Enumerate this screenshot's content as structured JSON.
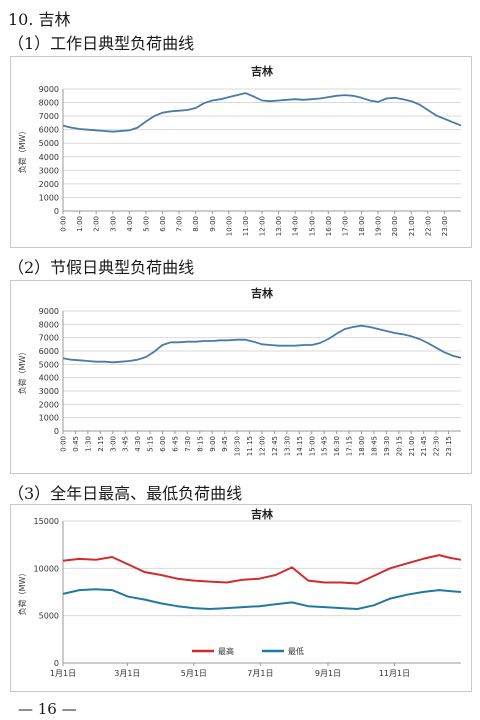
{
  "page": {
    "section_title": "10. 吉林",
    "footer": "— 16 —"
  },
  "charts": [
    {
      "heading": "（1）工作日典型负荷曲线",
      "chart_data": {
        "type": "line",
        "title": "吉林",
        "ylabel": "负荷（MW）",
        "xlabel": "",
        "ylim": [
          0,
          9000
        ],
        "yticks": [
          0,
          1000,
          2000,
          3000,
          4000,
          5000,
          6000,
          7000,
          8000,
          9000
        ],
        "x_tick_labels": [
          "0:00",
          "1:00",
          "2:00",
          "3:00",
          "4:00",
          "5:00",
          "6:00",
          "7:00",
          "8:00",
          "9:00",
          "10:00",
          "11:00",
          "12:00",
          "13:00",
          "14:00",
          "15:00",
          "16:00",
          "17:00",
          "18:00",
          "19:00",
          "20:00",
          "21:00",
          "22:00",
          "23:00"
        ],
        "x_hours": [
          0,
          0.5,
          1,
          1.5,
          2,
          2.5,
          3,
          3.5,
          4,
          4.5,
          5,
          5.5,
          6,
          6.5,
          7,
          7.5,
          8,
          8.5,
          9,
          9.5,
          10,
          10.5,
          11,
          11.5,
          12,
          12.5,
          13,
          13.5,
          14,
          14.5,
          15,
          15.5,
          16,
          16.5,
          17,
          17.5,
          18,
          18.5,
          19,
          19.5,
          20,
          20.5,
          21,
          21.5,
          22,
          22.5,
          23,
          23.5,
          24
        ],
        "series": [
          {
            "color": "#4a7aa8",
            "values": [
              6300,
              6150,
              6050,
              6000,
              5950,
              5900,
              5850,
              5900,
              5950,
              6150,
              6600,
              7000,
              7250,
              7350,
              7400,
              7450,
              7600,
              7950,
              8150,
              8250,
              8400,
              8550,
              8700,
              8450,
              8150,
              8100,
              8150,
              8200,
              8250,
              8200,
              8250,
              8300,
              8400,
              8500,
              8550,
              8500,
              8350,
              8150,
              8050,
              8300,
              8350,
              8250,
              8100,
              7850,
              7450,
              7050,
              6800,
              6550,
              6300
            ]
          }
        ]
      }
    },
    {
      "heading": "（2）节假日典型负荷曲线",
      "chart_data": {
        "type": "line",
        "title": "吉林",
        "ylabel": "负荷（MW）",
        "xlabel": "",
        "ylim": [
          0,
          9000
        ],
        "yticks": [
          0,
          1000,
          2000,
          3000,
          4000,
          5000,
          6000,
          7000,
          8000,
          9000
        ],
        "x_tick_labels": [
          "0:00",
          "0:45",
          "1:30",
          "2:15",
          "3:00",
          "3:45",
          "4:30",
          "5:15",
          "6:00",
          "6:45",
          "7:30",
          "8:15",
          "9:00",
          "9:45",
          "10:30",
          "11:15",
          "12:00",
          "12:45",
          "13:30",
          "14:15",
          "15:00",
          "15:45",
          "16:30",
          "17:15",
          "18:00",
          "18:45",
          "19:30",
          "20:15",
          "21:00",
          "21:45",
          "22:30",
          "23:15"
        ],
        "x_hours": [
          0,
          0.5,
          1,
          1.5,
          2,
          2.5,
          3,
          3.5,
          4,
          4.5,
          5,
          5.5,
          6,
          6.5,
          7,
          7.5,
          8,
          8.5,
          9,
          9.5,
          10,
          10.5,
          11,
          11.5,
          12,
          12.5,
          13,
          13.5,
          14,
          14.5,
          15,
          15.5,
          16,
          16.5,
          17,
          17.5,
          18,
          18.5,
          19,
          19.5,
          20,
          20.5,
          21,
          21.5,
          22,
          22.5,
          23,
          23.5,
          24
        ],
        "series": [
          {
            "color": "#4a7aa8",
            "values": [
              5450,
              5350,
              5300,
              5250,
              5200,
              5200,
              5150,
              5200,
              5250,
              5350,
              5550,
              5950,
              6450,
              6650,
              6650,
              6700,
              6700,
              6750,
              6750,
              6800,
              6800,
              6850,
              6850,
              6700,
              6500,
              6450,
              6400,
              6400,
              6400,
              6450,
              6450,
              6600,
              6900,
              7300,
              7650,
              7800,
              7900,
              7800,
              7650,
              7500,
              7350,
              7250,
              7100,
              6900,
              6600,
              6250,
              5900,
              5650,
              5500
            ]
          }
        ]
      }
    },
    {
      "heading": "（3）全年日最高、最低负荷曲线",
      "chart_data": {
        "type": "line",
        "title": "吉林",
        "ylabel": "负荷（MW）",
        "xlabel": "",
        "ylim": [
          0,
          15000
        ],
        "yticks": [
          0,
          5000,
          10000,
          15000
        ],
        "x_tick_labels": [
          "1月1日",
          "3月1日",
          "5月1日",
          "7月1日",
          "9月1日",
          "11月1日"
        ],
        "x_tick_days": [
          0,
          59,
          120,
          181,
          243,
          304
        ],
        "x_day_range": [
          0,
          365
        ],
        "x_days": [
          0,
          15,
          30,
          45,
          60,
          75,
          90,
          105,
          120,
          135,
          150,
          165,
          180,
          195,
          210,
          225,
          240,
          255,
          270,
          285,
          300,
          315,
          330,
          345,
          355,
          365
        ],
        "legend_position": "bottom",
        "series": [
          {
            "name": "最高",
            "color": "#d42a2a",
            "values": [
              10800,
              11000,
              10900,
              11200,
              10400,
              9600,
              9300,
              8900,
              8700,
              8600,
              8500,
              8800,
              8900,
              9300,
              10100,
              8700,
              8500,
              8500,
              8400,
              9200,
              10000,
              10500,
              11000,
              11400,
              11100,
              10900
            ]
          },
          {
            "name": "最低",
            "color": "#1f7aa0",
            "values": [
              7300,
              7700,
              7800,
              7700,
              7000,
              6700,
              6300,
              6000,
              5800,
              5700,
              5800,
              5900,
              6000,
              6200,
              6400,
              6000,
              5900,
              5800,
              5700,
              6100,
              6800,
              7200,
              7500,
              7700,
              7600,
              7500
            ]
          }
        ]
      }
    }
  ]
}
